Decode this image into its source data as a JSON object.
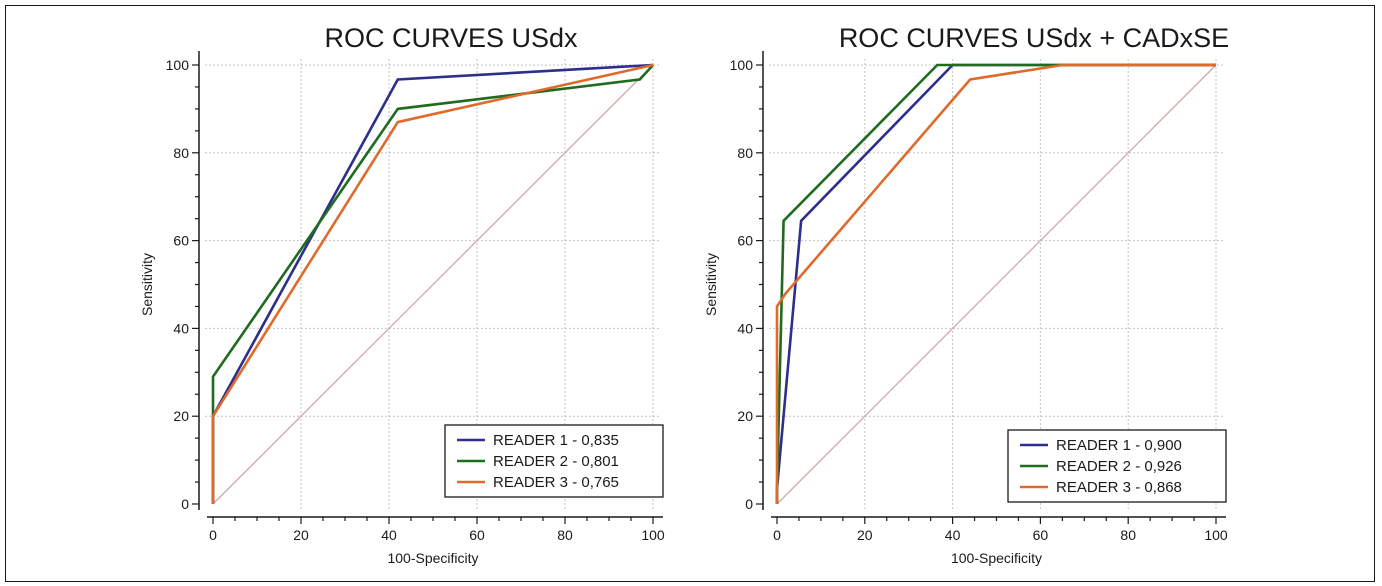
{
  "chart_data": [
    {
      "type": "line",
      "title": "ROC CURVES USdx",
      "xlabel": "100-Specificity",
      "ylabel": "Sensitivity",
      "xlim": [
        0,
        100
      ],
      "ylim": [
        0,
        100
      ],
      "xticks": [
        0,
        20,
        40,
        60,
        80,
        100
      ],
      "yticks": [
        0,
        20,
        40,
        60,
        80,
        100
      ],
      "grid": true,
      "legend_position": "bottom-right",
      "series": [
        {
          "name": "READER 1 - 0,835",
          "color": "#2e2e8c",
          "x": [
            0,
            0,
            42,
            100
          ],
          "y": [
            0,
            20,
            96.7,
            100
          ]
        },
        {
          "name": "READER 2 - 0,801",
          "color": "#1f6b1f",
          "x": [
            0,
            0,
            42,
            97,
            100
          ],
          "y": [
            0,
            29,
            90,
            96.7,
            100
          ]
        },
        {
          "name": "READER 3 - 0,765",
          "color": "#e06a2c",
          "x": [
            0,
            0,
            42,
            100
          ],
          "y": [
            0,
            20,
            87,
            100
          ]
        }
      ],
      "reference_line": {
        "x": [
          0,
          100
        ],
        "y": [
          0,
          100
        ],
        "color": "#d4a5a5"
      }
    },
    {
      "type": "line",
      "title": "ROC CURVES USdx +  CADxSE",
      "xlabel": "100-Specificity",
      "ylabel": "Sensitivity",
      "xlim": [
        0,
        100
      ],
      "ylim": [
        0,
        100
      ],
      "xticks": [
        0,
        20,
        40,
        60,
        80,
        100
      ],
      "yticks": [
        0,
        20,
        40,
        60,
        80,
        100
      ],
      "grid": true,
      "legend_position": "bottom-right",
      "series": [
        {
          "name": "READER 1 - 0,900",
          "color": "#2e2e8c",
          "x": [
            0,
            0,
            5.5,
            40,
            100
          ],
          "y": [
            0,
            3.5,
            64.5,
            100,
            100
          ]
        },
        {
          "name": "READER 2 - 0,926",
          "color": "#1f6b1f",
          "x": [
            0,
            0,
            1.5,
            36.5,
            100
          ],
          "y": [
            0,
            3.5,
            64.5,
            100,
            100
          ]
        },
        {
          "name": "READER 3 - 0,868",
          "color": "#e06a2c",
          "x": [
            0,
            0,
            2,
            44,
            65,
            100
          ],
          "y": [
            0,
            45,
            48,
            96.7,
            100,
            100
          ]
        }
      ],
      "reference_line": {
        "x": [
          0,
          100
        ],
        "y": [
          0,
          100
        ],
        "color": "#d4a5a5"
      }
    }
  ]
}
